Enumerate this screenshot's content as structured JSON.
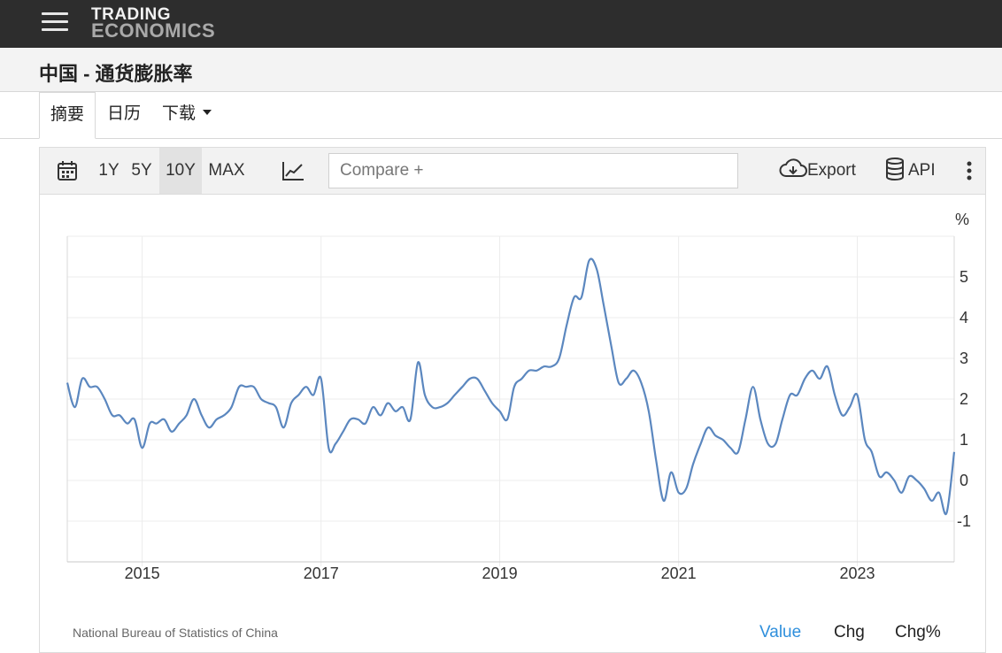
{
  "header": {
    "logo_line1": "TRADING",
    "logo_line2": "ECONOMICS"
  },
  "page": {
    "title": "中国 - 通货膨胀率"
  },
  "tabs": [
    {
      "label": "摘要"
    },
    {
      "label": "日历"
    },
    {
      "label": "下载"
    }
  ],
  "toolbar": {
    "ranges": [
      "1Y",
      "5Y",
      "10Y",
      "MAX"
    ],
    "selected_range": "10Y",
    "compare_placeholder": "Compare +",
    "export_label": "Export",
    "api_label": "API"
  },
  "footer": {
    "source": "National Bureau of Statistics of China",
    "value_label": "Value",
    "chg_label": "Chg",
    "chgpct_label": "Chg%"
  },
  "colors": {
    "line": "#5b87bf",
    "accent": "#2f8fdc",
    "topbar": "#2d2d2d"
  },
  "chart_data": {
    "type": "line",
    "ylabel": "%",
    "ylim": [
      -2,
      6
    ],
    "yticks": [
      -1,
      0,
      1,
      2,
      3,
      4,
      5
    ],
    "xticks": [
      "2015",
      "2017",
      "2019",
      "2021",
      "2023"
    ],
    "grid": true,
    "series": [
      {
        "values": [
          [
            "2014-03",
            2.4
          ],
          [
            "2014-04",
            1.8
          ],
          [
            "2014-05",
            2.5
          ],
          [
            "2014-06",
            2.3
          ],
          [
            "2014-07",
            2.3
          ],
          [
            "2014-08",
            2.0
          ],
          [
            "2014-09",
            1.6
          ],
          [
            "2014-10",
            1.6
          ],
          [
            "2014-11",
            1.4
          ],
          [
            "2014-12",
            1.5
          ],
          [
            "2015-01",
            0.8
          ],
          [
            "2015-02",
            1.4
          ],
          [
            "2015-03",
            1.4
          ],
          [
            "2015-04",
            1.5
          ],
          [
            "2015-05",
            1.2
          ],
          [
            "2015-06",
            1.4
          ],
          [
            "2015-07",
            1.6
          ],
          [
            "2015-08",
            2.0
          ],
          [
            "2015-09",
            1.6
          ],
          [
            "2015-10",
            1.3
          ],
          [
            "2015-11",
            1.5
          ],
          [
            "2015-12",
            1.6
          ],
          [
            "2016-01",
            1.8
          ],
          [
            "2016-02",
            2.3
          ],
          [
            "2016-03",
            2.3
          ],
          [
            "2016-04",
            2.3
          ],
          [
            "2016-05",
            2.0
          ],
          [
            "2016-06",
            1.9
          ],
          [
            "2016-07",
            1.8
          ],
          [
            "2016-08",
            1.3
          ],
          [
            "2016-09",
            1.9
          ],
          [
            "2016-10",
            2.1
          ],
          [
            "2016-11",
            2.3
          ],
          [
            "2016-12",
            2.1
          ],
          [
            "2017-01",
            2.5
          ],
          [
            "2017-02",
            0.8
          ],
          [
            "2017-03",
            0.9
          ],
          [
            "2017-04",
            1.2
          ],
          [
            "2017-05",
            1.5
          ],
          [
            "2017-06",
            1.5
          ],
          [
            "2017-07",
            1.4
          ],
          [
            "2017-08",
            1.8
          ],
          [
            "2017-09",
            1.6
          ],
          [
            "2017-10",
            1.9
          ],
          [
            "2017-11",
            1.7
          ],
          [
            "2017-12",
            1.8
          ],
          [
            "2018-01",
            1.5
          ],
          [
            "2018-02",
            2.9
          ],
          [
            "2018-03",
            2.1
          ],
          [
            "2018-04",
            1.8
          ],
          [
            "2018-05",
            1.8
          ],
          [
            "2018-06",
            1.9
          ],
          [
            "2018-07",
            2.1
          ],
          [
            "2018-08",
            2.3
          ],
          [
            "2018-09",
            2.5
          ],
          [
            "2018-10",
            2.5
          ],
          [
            "2018-11",
            2.2
          ],
          [
            "2018-12",
            1.9
          ],
          [
            "2019-01",
            1.7
          ],
          [
            "2019-02",
            1.5
          ],
          [
            "2019-03",
            2.3
          ],
          [
            "2019-04",
            2.5
          ],
          [
            "2019-05",
            2.7
          ],
          [
            "2019-06",
            2.7
          ],
          [
            "2019-07",
            2.8
          ],
          [
            "2019-08",
            2.8
          ],
          [
            "2019-09",
            3.0
          ],
          [
            "2019-10",
            3.8
          ],
          [
            "2019-11",
            4.5
          ],
          [
            "2019-12",
            4.5
          ],
          [
            "2020-01",
            5.4
          ],
          [
            "2020-02",
            5.2
          ],
          [
            "2020-03",
            4.3
          ],
          [
            "2020-04",
            3.3
          ],
          [
            "2020-05",
            2.4
          ],
          [
            "2020-06",
            2.5
          ],
          [
            "2020-07",
            2.7
          ],
          [
            "2020-08",
            2.4
          ],
          [
            "2020-09",
            1.7
          ],
          [
            "2020-10",
            0.5
          ],
          [
            "2020-11",
            -0.5
          ],
          [
            "2020-12",
            0.2
          ],
          [
            "2021-01",
            -0.3
          ],
          [
            "2021-02",
            -0.2
          ],
          [
            "2021-03",
            0.4
          ],
          [
            "2021-04",
            0.9
          ],
          [
            "2021-05",
            1.3
          ],
          [
            "2021-06",
            1.1
          ],
          [
            "2021-07",
            1.0
          ],
          [
            "2021-08",
            0.8
          ],
          [
            "2021-09",
            0.7
          ],
          [
            "2021-10",
            1.5
          ],
          [
            "2021-11",
            2.3
          ],
          [
            "2021-12",
            1.5
          ],
          [
            "2022-01",
            0.9
          ],
          [
            "2022-02",
            0.9
          ],
          [
            "2022-03",
            1.5
          ],
          [
            "2022-04",
            2.1
          ],
          [
            "2022-05",
            2.1
          ],
          [
            "2022-06",
            2.5
          ],
          [
            "2022-07",
            2.7
          ],
          [
            "2022-08",
            2.5
          ],
          [
            "2022-09",
            2.8
          ],
          [
            "2022-10",
            2.1
          ],
          [
            "2022-11",
            1.6
          ],
          [
            "2022-12",
            1.8
          ],
          [
            "2023-01",
            2.1
          ],
          [
            "2023-02",
            1.0
          ],
          [
            "2023-03",
            0.7
          ],
          [
            "2023-04",
            0.1
          ],
          [
            "2023-05",
            0.2
          ],
          [
            "2023-06",
            0.0
          ],
          [
            "2023-07",
            -0.3
          ],
          [
            "2023-08",
            0.1
          ],
          [
            "2023-09",
            0.0
          ],
          [
            "2023-10",
            -0.2
          ],
          [
            "2023-11",
            -0.5
          ],
          [
            "2023-12",
            -0.3
          ],
          [
            "2024-01",
            -0.8
          ],
          [
            "2024-02",
            0.7
          ]
        ]
      }
    ]
  }
}
